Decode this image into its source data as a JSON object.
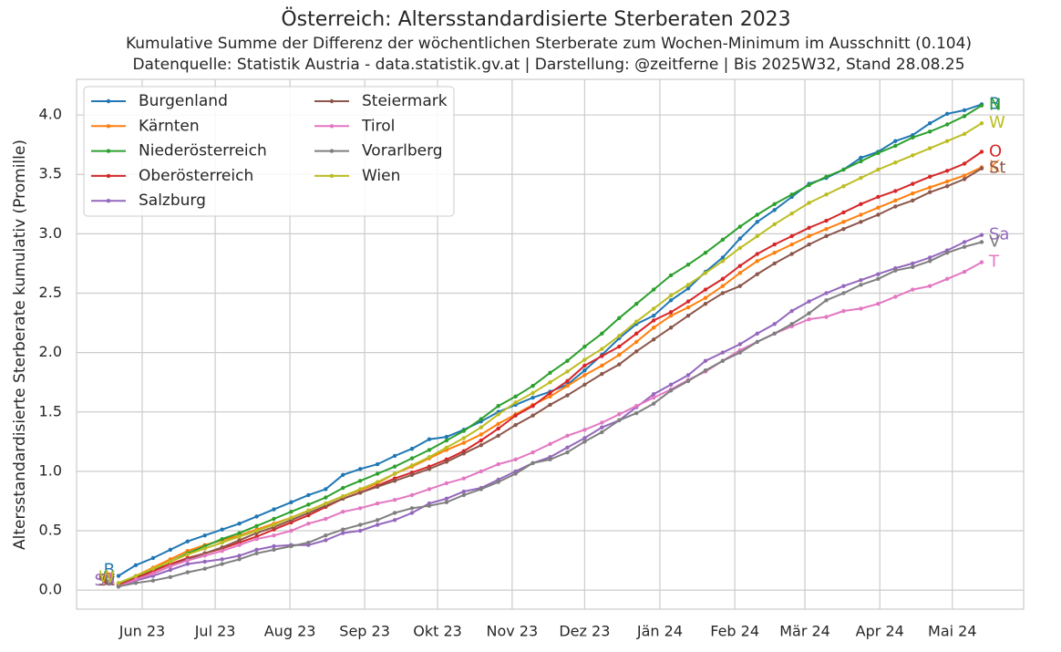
{
  "chart_data": {
    "type": "line",
    "title": "Österreich: Altersstandardisierte Sterberaten 2023",
    "subtitle": [
      "Kumulative Summe der Differenz der wöchentlichen Sterberate zum Wochen-Minimum im Ausschnitt (0.104)",
      "Datenquelle: Statistik Austria - data.statistik.gv.at | Darstellung: @zeitferne | Bis 2025W32, Stand 28.08.25"
    ],
    "ylabel": "Altersstandardisierte Sterberate kumulativ (Promille)",
    "ylim": [
      -0.16,
      4.3
    ],
    "yticks": [
      {
        "value": 0,
        "label": "0.0"
      },
      {
        "value": 0.5,
        "label": "0.5"
      },
      {
        "value": 1,
        "label": "1.0"
      },
      {
        "value": 1.5,
        "label": "1.5"
      },
      {
        "value": 2,
        "label": "2.0"
      },
      {
        "value": 2.5,
        "label": "2.5"
      },
      {
        "value": 3,
        "label": "3.0"
      },
      {
        "value": 3.5,
        "label": "3.5"
      },
      {
        "value": 4,
        "label": "4.0"
      }
    ],
    "xlim": [
      -2.43,
      52.43
    ],
    "xticks": [
      {
        "value": 1.37,
        "label": "Jun 23"
      },
      {
        "value": 5.6,
        "label": "Jul 23"
      },
      {
        "value": 9.93,
        "label": "Aug 23"
      },
      {
        "value": 14.26,
        "label": "Sep 23"
      },
      {
        "value": 18.48,
        "label": "Okt 23"
      },
      {
        "value": 22.8,
        "label": "Nov 23"
      },
      {
        "value": 27.0,
        "label": "Dez 23"
      },
      {
        "value": 31.36,
        "label": "Jän 24"
      },
      {
        "value": 35.7,
        "label": "Feb 24"
      },
      {
        "value": 39.76,
        "label": "Mär 24"
      },
      {
        "value": 44.1,
        "label": "Apr 24"
      },
      {
        "value": 48.3,
        "label": "Mai 24"
      }
    ],
    "grid": true,
    "legend_loc": "upper left",
    "series": [
      {
        "name": "Burgenland",
        "label": "B",
        "color": "#1f77b4",
        "values": [
          0.12,
          0.21,
          0.27,
          0.34,
          0.41,
          0.46,
          0.51,
          0.56,
          0.62,
          0.68,
          0.74,
          0.8,
          0.85,
          0.97,
          1.02,
          1.06,
          1.13,
          1.19,
          1.27,
          1.29,
          1.35,
          1.42,
          1.5,
          1.56,
          1.62,
          1.67,
          1.73,
          1.85,
          1.98,
          2.12,
          2.24,
          2.31,
          2.44,
          2.54,
          2.68,
          2.8,
          2.96,
          3.1,
          3.2,
          3.31,
          3.42,
          3.47,
          3.54,
          3.64,
          3.69,
          3.78,
          3.83,
          3.93,
          4.01,
          4.04,
          4.09
        ]
      },
      {
        "name": "Kärnten",
        "label": "K",
        "color": "#ff7f0e",
        "values": [
          0.05,
          0.12,
          0.19,
          0.26,
          0.33,
          0.38,
          0.42,
          0.46,
          0.51,
          0.56,
          0.61,
          0.67,
          0.73,
          0.79,
          0.84,
          0.9,
          0.98,
          1.04,
          1.11,
          1.18,
          1.24,
          1.31,
          1.4,
          1.48,
          1.56,
          1.63,
          1.72,
          1.81,
          1.89,
          1.98,
          2.09,
          2.21,
          2.31,
          2.38,
          2.46,
          2.56,
          2.67,
          2.77,
          2.84,
          2.91,
          2.98,
          3.04,
          3.1,
          3.16,
          3.22,
          3.28,
          3.34,
          3.39,
          3.44,
          3.49,
          3.56
        ]
      },
      {
        "name": "Niederösterreich",
        "label": "N",
        "color": "#2ca02c",
        "values": [
          0.05,
          0.11,
          0.17,
          0.24,
          0.31,
          0.37,
          0.43,
          0.48,
          0.54,
          0.6,
          0.66,
          0.72,
          0.78,
          0.86,
          0.92,
          0.98,
          1.04,
          1.11,
          1.18,
          1.26,
          1.34,
          1.44,
          1.55,
          1.63,
          1.72,
          1.83,
          1.93,
          2.05,
          2.16,
          2.29,
          2.41,
          2.53,
          2.65,
          2.74,
          2.84,
          2.95,
          3.06,
          3.16,
          3.25,
          3.33,
          3.41,
          3.48,
          3.54,
          3.61,
          3.68,
          3.74,
          3.81,
          3.86,
          3.92,
          3.99,
          4.08
        ]
      },
      {
        "name": "Oberösterreich",
        "label": "O",
        "color": "#d62728",
        "values": [
          0.04,
          0.1,
          0.16,
          0.22,
          0.27,
          0.31,
          0.35,
          0.4,
          0.45,
          0.51,
          0.57,
          0.63,
          0.7,
          0.77,
          0.82,
          0.88,
          0.94,
          0.99,
          1.04,
          1.1,
          1.17,
          1.26,
          1.36,
          1.47,
          1.55,
          1.66,
          1.76,
          1.89,
          1.97,
          2.05,
          2.16,
          2.27,
          2.34,
          2.43,
          2.53,
          2.62,
          2.73,
          2.83,
          2.91,
          2.98,
          3.05,
          3.11,
          3.18,
          3.25,
          3.31,
          3.36,
          3.42,
          3.48,
          3.53,
          3.59,
          3.69
        ]
      },
      {
        "name": "Salzburg",
        "label": "Sa",
        "color": "#9467bd",
        "values": [
          0.03,
          0.08,
          0.12,
          0.17,
          0.22,
          0.24,
          0.26,
          0.29,
          0.34,
          0.37,
          0.38,
          0.38,
          0.42,
          0.48,
          0.5,
          0.55,
          0.59,
          0.65,
          0.73,
          0.77,
          0.83,
          0.86,
          0.93,
          1.0,
          1.07,
          1.12,
          1.2,
          1.28,
          1.37,
          1.43,
          1.54,
          1.65,
          1.73,
          1.81,
          1.93,
          2.0,
          2.07,
          2.16,
          2.24,
          2.35,
          2.43,
          2.5,
          2.56,
          2.61,
          2.66,
          2.71,
          2.75,
          2.8,
          2.86,
          2.93,
          2.99
        ]
      },
      {
        "name": "Steiermark",
        "label": "St",
        "color": "#8c564b",
        "values": [
          0.03,
          0.09,
          0.14,
          0.2,
          0.26,
          0.31,
          0.36,
          0.42,
          0.48,
          0.53,
          0.59,
          0.65,
          0.71,
          0.77,
          0.82,
          0.87,
          0.92,
          0.97,
          1.02,
          1.08,
          1.15,
          1.22,
          1.3,
          1.39,
          1.47,
          1.56,
          1.64,
          1.73,
          1.82,
          1.9,
          2.01,
          2.11,
          2.21,
          2.31,
          2.41,
          2.5,
          2.56,
          2.66,
          2.75,
          2.83,
          2.91,
          2.98,
          3.04,
          3.1,
          3.16,
          3.23,
          3.28,
          3.35,
          3.4,
          3.46,
          3.55
        ]
      },
      {
        "name": "Tirol",
        "label": "T",
        "color": "#e377c2",
        "values": [
          0.03,
          0.09,
          0.14,
          0.2,
          0.25,
          0.29,
          0.33,
          0.38,
          0.43,
          0.46,
          0.5,
          0.56,
          0.6,
          0.66,
          0.69,
          0.73,
          0.76,
          0.8,
          0.85,
          0.9,
          0.94,
          1.0,
          1.06,
          1.1,
          1.16,
          1.23,
          1.3,
          1.35,
          1.41,
          1.48,
          1.55,
          1.62,
          1.69,
          1.77,
          1.84,
          1.93,
          2.02,
          2.09,
          2.16,
          2.22,
          2.28,
          2.3,
          2.35,
          2.37,
          2.41,
          2.47,
          2.53,
          2.56,
          2.62,
          2.68,
          2.76
        ]
      },
      {
        "name": "Vorarlberg",
        "label": "V",
        "color": "#7f7f7f",
        "values": [
          0.03,
          0.06,
          0.08,
          0.11,
          0.15,
          0.18,
          0.22,
          0.26,
          0.31,
          0.34,
          0.37,
          0.4,
          0.46,
          0.51,
          0.55,
          0.59,
          0.65,
          0.69,
          0.71,
          0.74,
          0.8,
          0.85,
          0.91,
          0.98,
          1.07,
          1.1,
          1.16,
          1.25,
          1.33,
          1.43,
          1.49,
          1.57,
          1.68,
          1.76,
          1.85,
          1.93,
          2.0,
          2.09,
          2.16,
          2.24,
          2.33,
          2.44,
          2.5,
          2.57,
          2.62,
          2.69,
          2.72,
          2.77,
          2.84,
          2.89,
          2.93
        ]
      },
      {
        "name": "Wien",
        "label": "W",
        "color": "#bcbd22",
        "values": [
          0.06,
          0.12,
          0.18,
          0.24,
          0.3,
          0.35,
          0.4,
          0.45,
          0.5,
          0.55,
          0.61,
          0.67,
          0.73,
          0.79,
          0.85,
          0.91,
          0.98,
          1.05,
          1.12,
          1.2,
          1.28,
          1.37,
          1.48,
          1.58,
          1.66,
          1.75,
          1.84,
          1.94,
          2.03,
          2.14,
          2.26,
          2.37,
          2.48,
          2.57,
          2.67,
          2.77,
          2.88,
          2.98,
          3.08,
          3.17,
          3.26,
          3.33,
          3.4,
          3.47,
          3.54,
          3.6,
          3.66,
          3.72,
          3.78,
          3.84,
          3.93
        ]
      }
    ]
  }
}
